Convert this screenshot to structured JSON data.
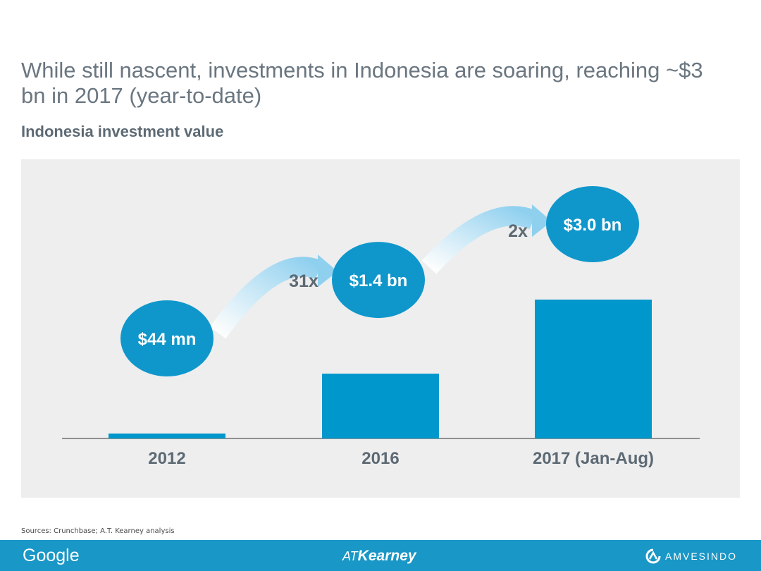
{
  "title": "While still nascent, investments in Indonesia are soaring, reaching ~$3 bn in 2017 (year-to-date)",
  "subtitle": "Indonesia investment value",
  "chart_data": {
    "type": "bar",
    "categories": [
      "2012",
      "2016",
      "2017 (Jan-Aug)"
    ],
    "values": [
      0.044,
      1.4,
      3.0
    ],
    "value_labels": [
      "$44 mn",
      "$1.4 bn",
      "$3.0 bn"
    ],
    "growth_labels": [
      "31x",
      "2x"
    ],
    "unit": "US$ bn",
    "ylim": [
      0,
      3.0
    ],
    "bar_color": "#0097cc",
    "bubble_color": "#0f97cb",
    "grid": false,
    "legend": "none"
  },
  "sources": "Sources: Crunchbase; A.T. Kearney analysis",
  "footer": {
    "left_logo": "Google",
    "center_logo_prefix": "AT",
    "center_logo_main": "Kearney",
    "right_logo": "AMVESINDO",
    "right_logo_icon": "amvesindo-logo-icon",
    "background": "#1997c6"
  }
}
